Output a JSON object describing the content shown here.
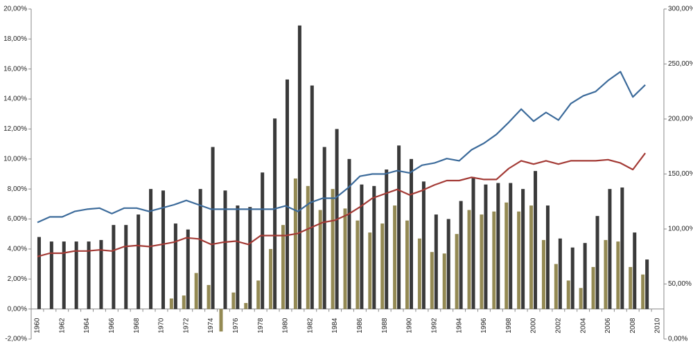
{
  "chart_data": {
    "type": "bar-line",
    "categories": [
      "1960",
      null,
      "1962",
      null,
      "1964",
      null,
      "1966",
      null,
      "1968",
      null,
      "1970",
      null,
      "1972",
      null,
      "1974",
      null,
      "1976",
      null,
      "1978",
      null,
      "1980",
      null,
      "1982",
      null,
      "1984",
      null,
      "1986",
      null,
      "1988",
      null,
      "1990",
      null,
      "1992",
      null,
      "1994",
      null,
      "1996",
      null,
      "1998",
      null,
      "2000",
      null,
      "2002",
      null,
      "2004",
      null,
      "2006",
      null,
      "2008",
      null,
      "2010"
    ],
    "series": [
      {
        "kind": "bar",
        "color": "#3a3a3a",
        "values": [
          4.8,
          4.5,
          4.5,
          4.5,
          4.5,
          4.6,
          5.6,
          5.6,
          6.3,
          8.0,
          7.9,
          5.7,
          5.3,
          8.0,
          10.8,
          7.9,
          6.9,
          6.8,
          9.1,
          12.7,
          15.3,
          18.9,
          14.9,
          10.8,
          12.0,
          10.0,
          8.3,
          8.2,
          9.3,
          10.9,
          10.0,
          8.5,
          6.3,
          6.0,
          7.2,
          8.8,
          8.3,
          8.4,
          8.4,
          8.0,
          9.2,
          6.9,
          4.7,
          4.1,
          4.4,
          6.2,
          8.0,
          8.1,
          5.1,
          3.3,
          null
        ]
      },
      {
        "kind": "bar",
        "color": "#948a54",
        "values": [
          null,
          null,
          null,
          null,
          null,
          null,
          null,
          null,
          null,
          null,
          null,
          0.7,
          0.9,
          2.4,
          1.6,
          -1.5,
          1.1,
          0.4,
          1.9,
          4.0,
          5.6,
          8.7,
          8.2,
          6.6,
          8.0,
          6.7,
          5.9,
          5.1,
          5.7,
          6.9,
          5.9,
          4.7,
          3.8,
          3.7,
          5.0,
          6.6,
          6.3,
          6.5,
          7.1,
          6.5,
          6.9,
          4.6,
          3.0,
          1.9,
          1.4,
          2.8,
          4.6,
          4.5,
          2.8,
          2.3,
          null
        ]
      },
      {
        "kind": "line",
        "axis": "y2",
        "color": "#3b6a9a",
        "values": [
          106,
          111,
          111,
          116,
          118,
          119,
          114,
          119,
          119,
          116,
          119,
          122,
          126,
          122,
          118,
          118,
          118,
          118,
          118,
          118,
          121,
          116,
          124,
          128,
          128,
          137,
          148,
          150,
          150,
          153,
          151,
          158,
          160,
          164,
          162,
          172,
          178,
          186,
          197,
          209,
          198,
          206,
          199,
          214,
          221,
          225,
          235,
          243,
          220,
          231,
          null
        ]
      },
      {
        "kind": "line",
        "axis": "y2",
        "color": "#a33a35",
        "values": [
          75,
          78,
          78,
          80,
          80,
          81,
          80,
          84,
          85,
          84,
          86,
          88,
          92,
          91,
          86,
          88,
          89,
          86,
          94,
          94,
          94,
          96,
          101,
          106,
          108,
          113,
          120,
          128,
          132,
          136,
          131,
          135,
          140,
          144,
          144,
          147,
          145,
          145,
          155,
          162,
          159,
          162,
          159,
          162,
          162,
          162,
          163,
          160,
          154,
          169,
          null
        ]
      }
    ],
    "ylim": [
      -2,
      20
    ],
    "yticks": [
      {
        "value": -2,
        "label": "-2,00%"
      },
      {
        "value": 0,
        "label": "0,00%"
      },
      {
        "value": 2,
        "label": "2,00%"
      },
      {
        "value": 4,
        "label": "4,00%"
      },
      {
        "value": 6,
        "label": "6,00%"
      },
      {
        "value": 8,
        "label": "8,00%"
      },
      {
        "value": 10,
        "label": "10,00%"
      },
      {
        "value": 12,
        "label": "12,00%"
      },
      {
        "value": 14,
        "label": "14,00%"
      },
      {
        "value": 16,
        "label": "16,00%"
      },
      {
        "value": 18,
        "label": "18,00%"
      },
      {
        "value": 20,
        "label": "20,00%"
      }
    ],
    "y2lim": [
      0,
      300
    ],
    "y2ticks": [
      {
        "value": 0,
        "label": "0,00%"
      },
      {
        "value": 50,
        "label": "50,00%"
      },
      {
        "value": 100,
        "label": "100,00%"
      },
      {
        "value": 150,
        "label": "150,00%"
      },
      {
        "value": 200,
        "label": "200,00%"
      },
      {
        "value": 250,
        "label": "250,00%"
      },
      {
        "value": 300,
        "label": "300,00%"
      }
    ],
    "grid": false
  }
}
